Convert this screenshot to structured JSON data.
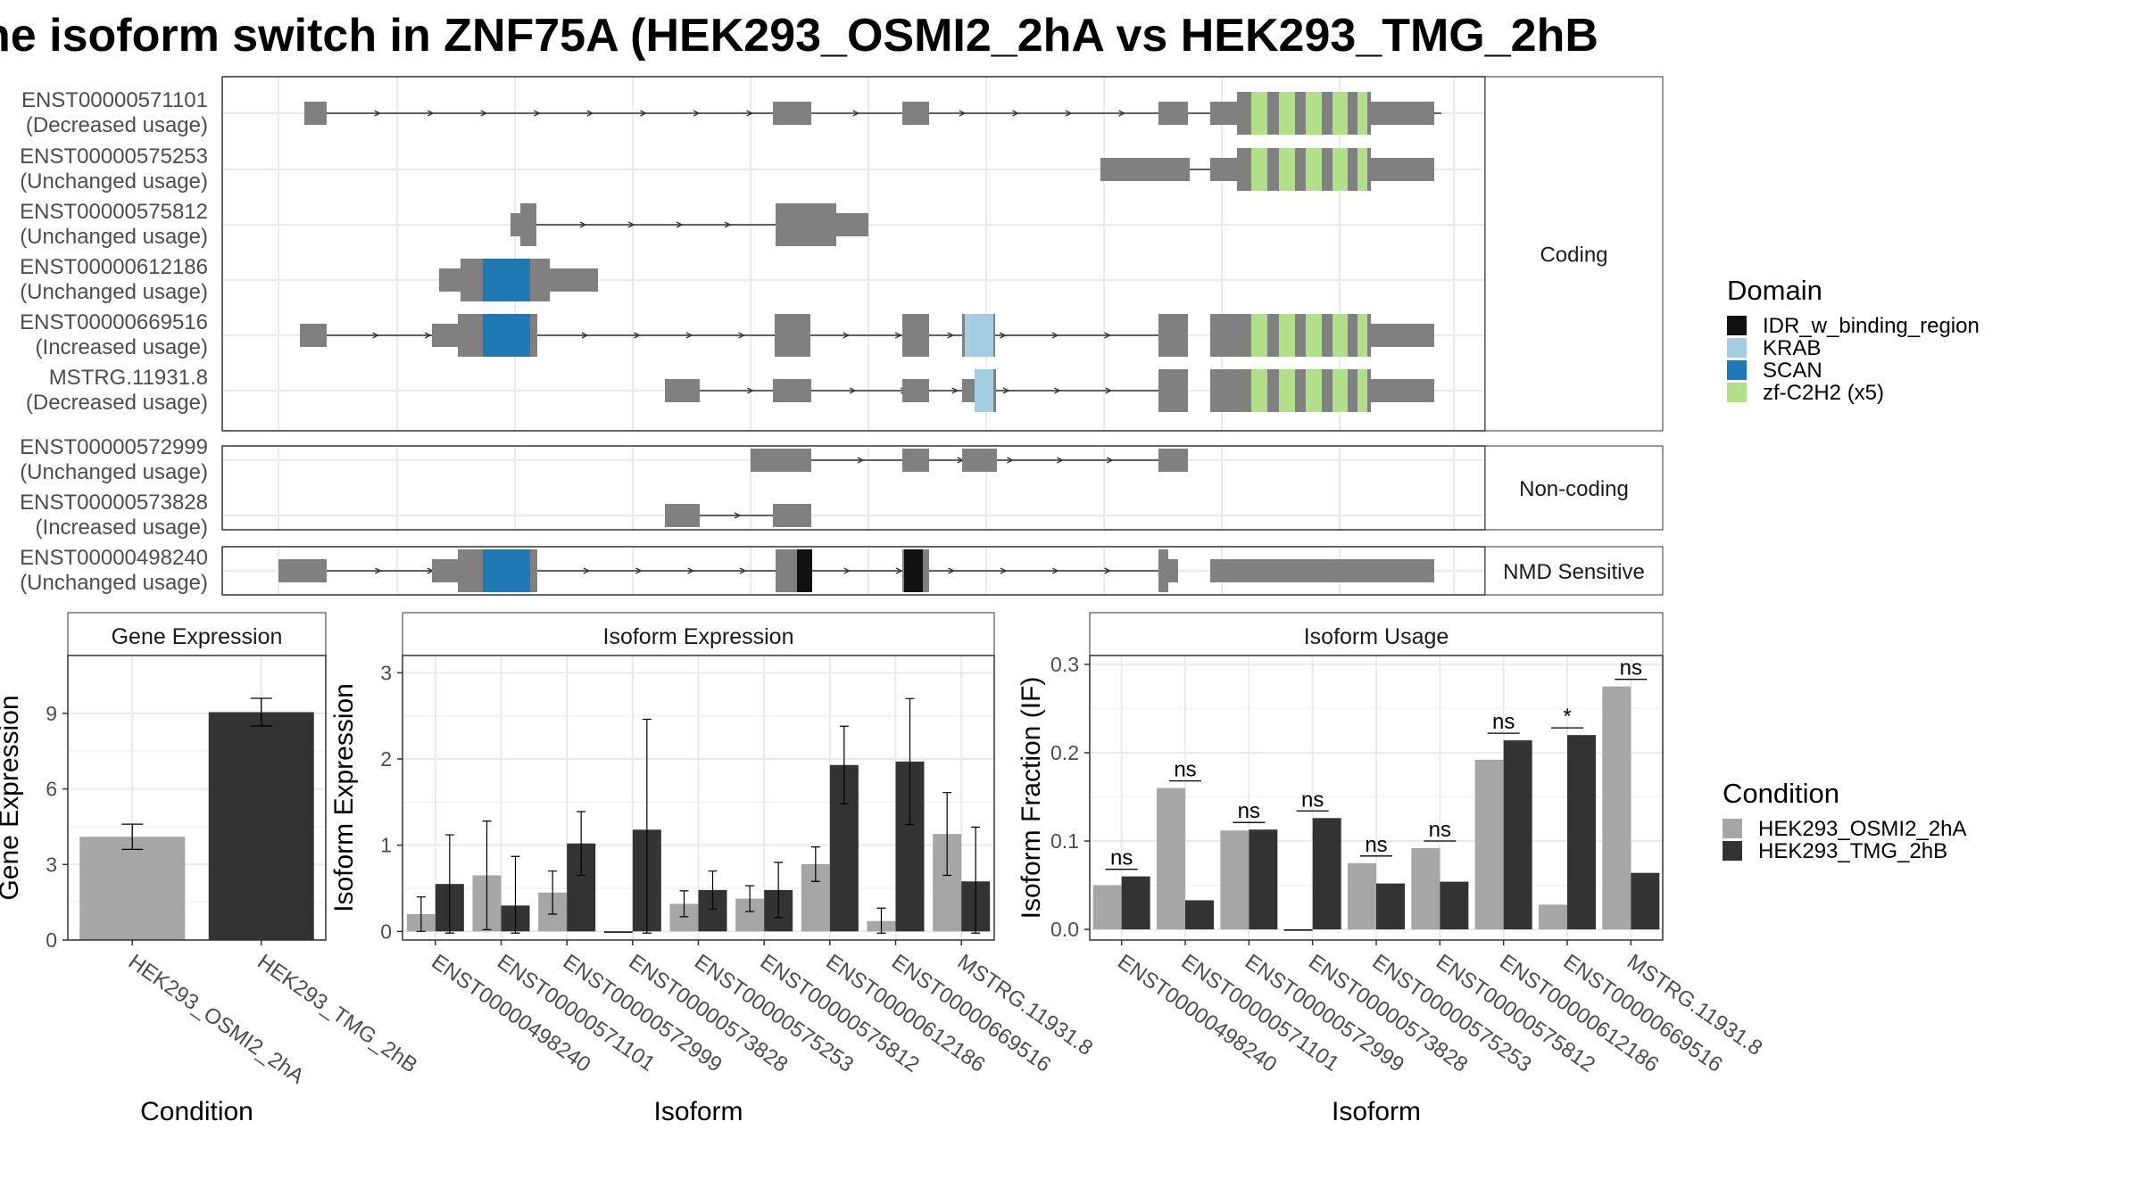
{
  "title": "he isoform switch in ZNF75A (HEK293_OSMI2_2hA vs HEK293_TMG_2hB",
  "colors": {
    "exon": "#808080",
    "osmi": "#a6a6a6",
    "tmg": "#333333",
    "idr": "#111111",
    "krab": "#a6cee3",
    "scan": "#1f78b4",
    "zf": "#b2df8a"
  },
  "transcripts": {
    "facets": [
      "Coding",
      "Non-coding",
      "NMD Sensitive"
    ],
    "coding": [
      {
        "id": "ENST00000571101",
        "usage": "(Decreased usage)"
      },
      {
        "id": "ENST00000575253",
        "usage": "(Unchanged usage)"
      },
      {
        "id": "ENST00000575812",
        "usage": "(Unchanged usage)"
      },
      {
        "id": "ENST00000612186",
        "usage": "(Unchanged usage)"
      },
      {
        "id": "ENST00000669516",
        "usage": "(Increased usage)"
      },
      {
        "id": "MSTRG.11931.8",
        "usage": "(Decreased usage)"
      }
    ],
    "noncoding": [
      {
        "id": "ENST00000572999",
        "usage": "(Unchanged usage)"
      },
      {
        "id": "ENST00000573828",
        "usage": "(Increased usage)"
      }
    ],
    "nmd": [
      {
        "id": "ENST00000498240",
        "usage": "(Unchanged usage)"
      }
    ]
  },
  "legend_domain": {
    "title": "Domain",
    "items": [
      {
        "label": "IDR_w_binding_region",
        "color": "#111111"
      },
      {
        "label": "KRAB",
        "color": "#a6cee3"
      },
      {
        "label": "SCAN",
        "color": "#1f78b4"
      },
      {
        "label": "zf-C2H2 (x5)",
        "color": "#b2df8a"
      }
    ]
  },
  "legend_condition": {
    "title": "Condition",
    "items": [
      {
        "label": "HEK293_OSMI2_2hA",
        "color": "#a6a6a6"
      },
      {
        "label": "HEK293_TMG_2hB",
        "color": "#333333"
      }
    ]
  },
  "chart_data": [
    {
      "type": "bar",
      "title": "Gene Expression",
      "xlabel": "Condition",
      "ylabel": "Gene Expression",
      "categories": [
        "HEK293_OSMI2_2hA",
        "HEK293_TMG_2hB"
      ],
      "values": [
        4.1,
        9.05
      ],
      "errors": [
        0.5,
        0.55
      ],
      "yticks": [
        0,
        3,
        6,
        9
      ],
      "ylim": [
        0,
        11.3
      ]
    },
    {
      "type": "bar",
      "title": "Isoform Expression",
      "xlabel": "Isoform",
      "ylabel": "Isoform Expression",
      "categories": [
        "ENST00000498240",
        "ENST00000571101",
        "ENST00000572999",
        "ENST00000573828",
        "ENST00000575253",
        "ENST00000575812",
        "ENST00000612186",
        "ENST00000669516",
        "MSTRG.11931.8"
      ],
      "series": [
        {
          "name": "HEK293_OSMI2_2hA",
          "values": [
            0.2,
            0.65,
            0.45,
            0.0,
            0.32,
            0.38,
            0.78,
            0.12,
            1.13
          ],
          "errors": [
            0.2,
            0.63,
            0.25,
            0.0,
            0.15,
            0.15,
            0.2,
            0.15,
            0.48
          ]
        },
        {
          "name": "HEK293_TMG_2hB",
          "values": [
            0.55,
            0.3,
            1.02,
            1.18,
            0.48,
            0.48,
            1.93,
            1.97,
            0.58
          ],
          "errors": [
            0.57,
            0.57,
            0.37,
            1.28,
            0.22,
            0.32,
            0.45,
            0.73,
            0.63
          ]
        }
      ],
      "yticks": [
        0,
        1,
        2,
        3
      ],
      "ylim": [
        -0.1,
        3.2
      ]
    },
    {
      "type": "bar",
      "title": "Isoform Usage",
      "xlabel": "Isoform",
      "ylabel": "Isoform Fraction (IF)",
      "categories": [
        "ENST00000498240",
        "ENST00000571101",
        "ENST00000572999",
        "ENST00000573828",
        "ENST00000575253",
        "ENST00000575812",
        "ENST00000612186",
        "ENST00000669516",
        "MSTRG.11931.8"
      ],
      "series": [
        {
          "name": "HEK293_OSMI2_2hA",
          "values": [
            0.05,
            0.16,
            0.112,
            0.0,
            0.075,
            0.092,
            0.192,
            0.028,
            0.275
          ]
        },
        {
          "name": "HEK293_TMG_2hB",
          "values": [
            0.06,
            0.033,
            0.113,
            0.126,
            0.052,
            0.054,
            0.214,
            0.22,
            0.064
          ]
        }
      ],
      "significance": [
        "ns",
        "ns",
        "ns",
        "ns",
        "ns",
        "ns",
        "ns",
        "*",
        "ns"
      ],
      "yticks": [
        0.0,
        0.1,
        0.2,
        0.3
      ],
      "ytick_labels": [
        "0.0",
        "0.1",
        "0.2",
        "0.3"
      ],
      "ylim": [
        -0.012,
        0.31
      ]
    }
  ]
}
